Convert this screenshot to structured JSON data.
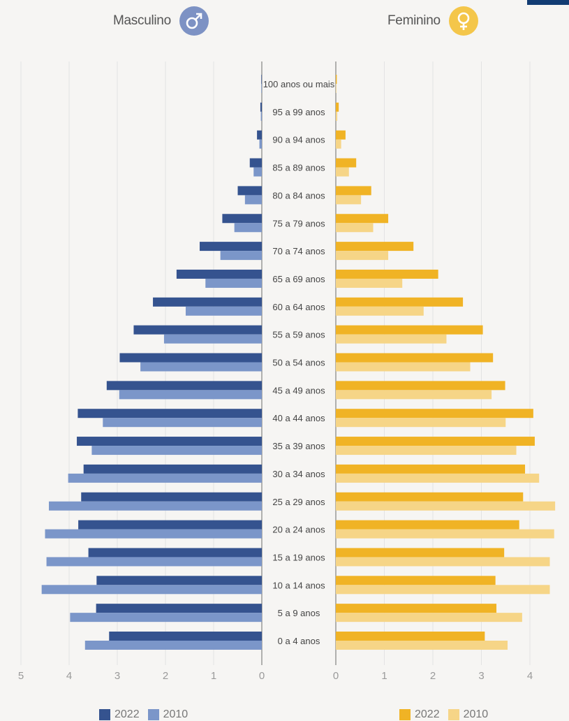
{
  "headers": {
    "male_label": "Masculino",
    "male_symbol": "♂",
    "female_label": "Feminino",
    "female_symbol": "♀"
  },
  "colors": {
    "male_2022": "#35538f",
    "male_2010": "#7b96c9",
    "female_2022": "#f0b325",
    "female_2010": "#f6d587",
    "male_symbol_bg": "#7d92c4",
    "female_symbol_bg": "#f4c64a"
  },
  "legend": {
    "male": [
      {
        "label": "2022",
        "color": "#35538f"
      },
      {
        "label": "2010",
        "color": "#7b96c9"
      }
    ],
    "female": [
      {
        "label": "2022",
        "color": "#f0b325"
      },
      {
        "label": "2010",
        "color": "#f6d587"
      }
    ]
  },
  "chart_data": {
    "type": "bar",
    "orientation": "horizontal",
    "units": "percent of population",
    "categories": [
      "100 anos ou mais",
      "95 a 99 anos",
      "90 a 94 anos",
      "85 a 89 anos",
      "80 a 84 anos",
      "75 a 79 anos",
      "70 a 74 anos",
      "65 a 69 anos",
      "60 a 64 anos",
      "55 a 59 anos",
      "50 a 54 anos",
      "45 a 49 anos",
      "40 a 44 anos",
      "35 a 39 anos",
      "30 a 34 anos",
      "25 a 29 anos",
      "20 a 24 anos",
      "15 a 19 anos",
      "10 a 14 anos",
      "5 a 9 anos",
      "0 a 4 anos"
    ],
    "series": [
      {
        "name": "Masculino 2022",
        "side": "left",
        "values": [
          0.01,
          0.03,
          0.1,
          0.25,
          0.5,
          0.82,
          1.29,
          1.77,
          2.26,
          2.66,
          2.95,
          3.22,
          3.82,
          3.84,
          3.7,
          3.75,
          3.81,
          3.6,
          3.43,
          3.44,
          3.17
        ]
      },
      {
        "name": "Masculino 2010",
        "side": "left",
        "values": [
          0.01,
          0.02,
          0.05,
          0.17,
          0.35,
          0.57,
          0.86,
          1.17,
          1.58,
          2.03,
          2.52,
          2.96,
          3.3,
          3.53,
          4.02,
          4.42,
          4.5,
          4.47,
          4.57,
          3.98,
          3.67
        ]
      },
      {
        "name": "Feminino 2022",
        "side": "right",
        "values": [
          0.02,
          0.06,
          0.2,
          0.42,
          0.73,
          1.08,
          1.6,
          2.11,
          2.62,
          3.03,
          3.24,
          3.49,
          4.07,
          4.1,
          3.9,
          3.86,
          3.78,
          3.47,
          3.29,
          3.31,
          3.07
        ]
      },
      {
        "name": "Feminino 2010",
        "side": "right",
        "values": [
          0.01,
          0.03,
          0.11,
          0.27,
          0.52,
          0.77,
          1.08,
          1.37,
          1.81,
          2.28,
          2.77,
          3.21,
          3.5,
          3.72,
          4.19,
          4.52,
          4.5,
          4.41,
          4.41,
          3.84,
          3.54
        ]
      }
    ],
    "male_axis": {
      "ticks": [
        "5",
        "4",
        "3",
        "2",
        "1",
        "0"
      ],
      "range": [
        0,
        5
      ],
      "direction": "reversed"
    },
    "female_axis": {
      "ticks": [
        "0",
        "1",
        "2",
        "3",
        "4"
      ],
      "range": [
        0,
        4.5
      ]
    },
    "grid": true,
    "legend_position": "bottom"
  }
}
